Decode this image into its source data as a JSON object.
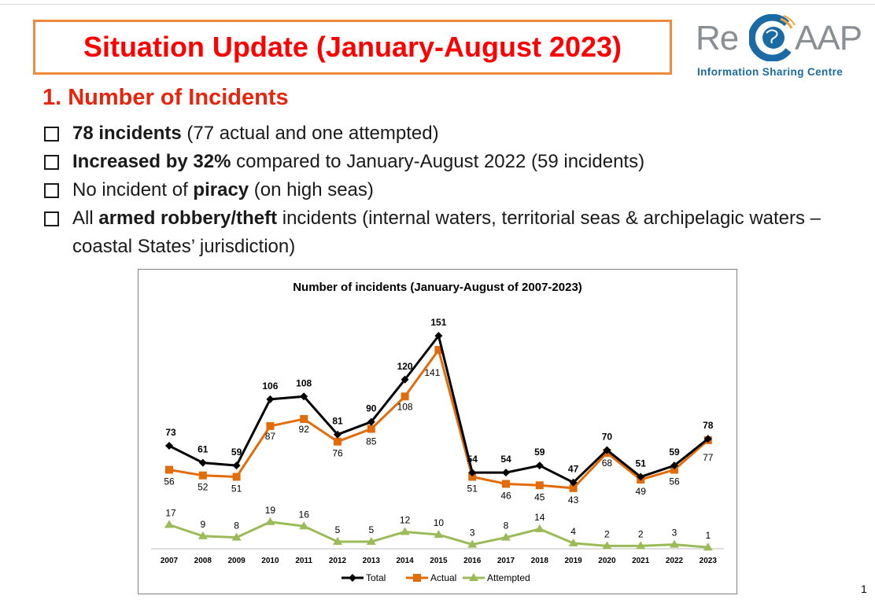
{
  "slide": {
    "title": "Situation Update (January-August 2023)",
    "section_heading": "1. Number of Incidents",
    "page_number": "1"
  },
  "logo": {
    "main_left": "Re",
    "main_right": "AAP",
    "subtitle": "Information Sharing Centre",
    "colors": {
      "grey": "#8a8f94",
      "blue": "#1a6aa6",
      "accent": "#f2a23a"
    }
  },
  "bullets": [
    {
      "bold": "78 incidents",
      "text": " (77 actual and one attempted)"
    },
    {
      "bold": "Increased by 32%",
      "text": " compared to January-August 2022 (59 incidents)"
    },
    {
      "pre": "No incident of ",
      "bold": "piracy",
      "text": " (on high seas)"
    },
    {
      "pre": "All ",
      "bold": "armed robbery/theft",
      "text": " incidents (internal waters, territorial seas & archipelagic waters – coastal States’ jurisdiction)"
    }
  ],
  "colors": {
    "title_red": "#ff0000",
    "heading_red": "#e8240c",
    "title_border": "#f08a3c"
  },
  "chart_data": {
    "type": "line",
    "title": "Number of incidents (January-August of 2007-2023)",
    "categories": [
      "2007",
      "2008",
      "2009",
      "2010",
      "2011",
      "2012",
      "2013",
      "2014",
      "2015",
      "2016",
      "2017",
      "2018",
      "2019",
      "2020",
      "2021",
      "2022",
      "2023"
    ],
    "series": [
      {
        "name": "Total",
        "color": "#000000",
        "marker": "diamond",
        "values": [
          73,
          61,
          59,
          106,
          108,
          81,
          90,
          120,
          151,
          54,
          54,
          59,
          47,
          70,
          51,
          59,
          78
        ]
      },
      {
        "name": "Actual",
        "color": "#e36c0a",
        "marker": "square",
        "values": [
          56,
          52,
          51,
          87,
          92,
          76,
          85,
          108,
          141,
          51,
          46,
          45,
          43,
          68,
          49,
          56,
          77
        ]
      },
      {
        "name": "Attempted",
        "color": "#9bbb59",
        "marker": "triangle",
        "values": [
          17,
          9,
          8,
          19,
          16,
          5,
          5,
          12,
          10,
          3,
          8,
          14,
          4,
          2,
          2,
          3,
          1
        ]
      }
    ],
    "ylim": [
      0,
      160
    ],
    "grid": false,
    "legend": "bottom"
  }
}
